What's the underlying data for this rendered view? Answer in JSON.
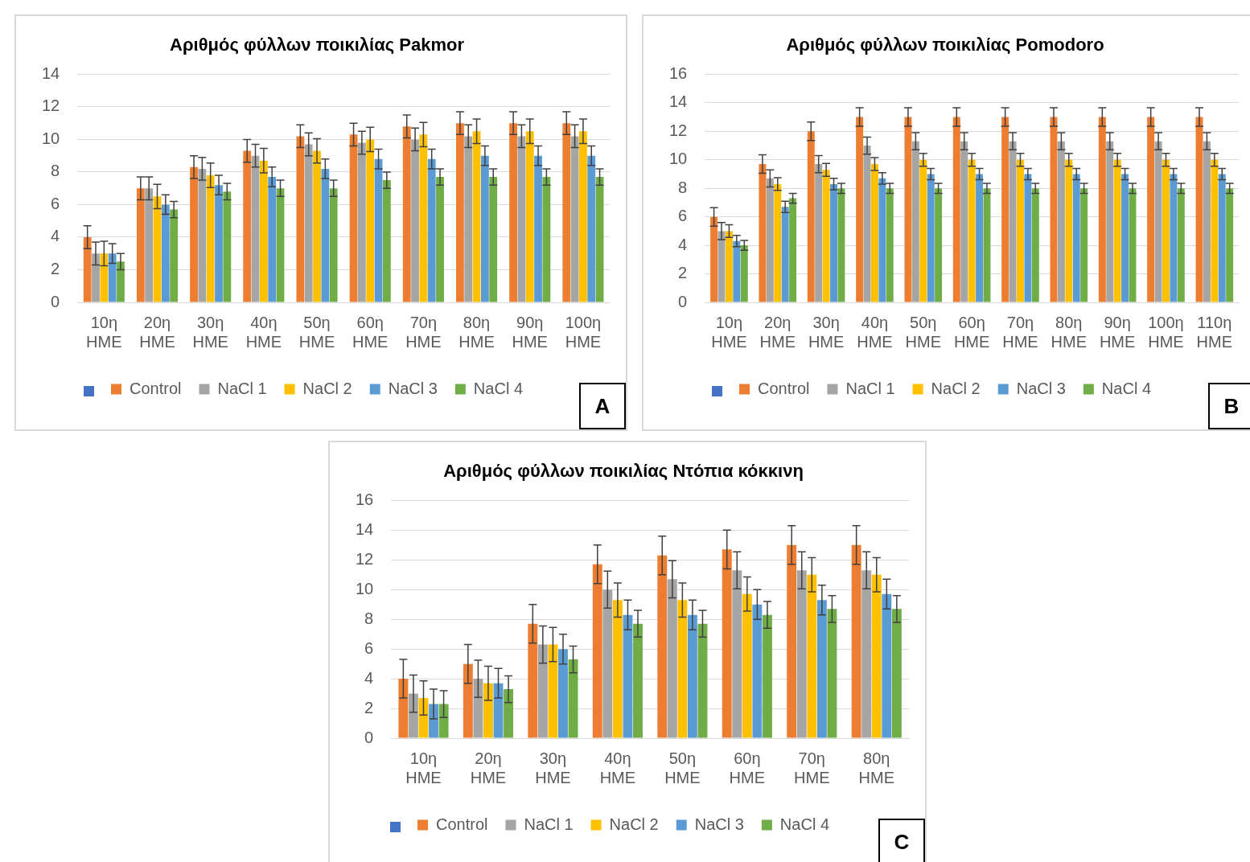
{
  "chart_data": [
    {
      "type": "bar",
      "title": "Αριθμός φύλλων ποικιλίας Pakmor",
      "categories": [
        "10η HME",
        "20η HME",
        "30η HME",
        "40η HME",
        "50η HME",
        "60η HME",
        "70η HME",
        "80η HME",
        "90η HME",
        "100η HME"
      ],
      "ylim": [
        0,
        14
      ],
      "yticks": [
        0,
        2,
        4,
        6,
        8,
        10,
        12,
        14
      ],
      "grid": "y",
      "legend": "bottom",
      "annotations": [
        "A"
      ],
      "series": [
        {
          "name": "Control",
          "color": "#ed7d31",
          "values": [
            4,
            7,
            8.3,
            9.3,
            10.2,
            10.3,
            10.8,
            11,
            11,
            11
          ],
          "errors": [
            0.7,
            0.7,
            0.7,
            0.7,
            0.7,
            0.7,
            0.7,
            0.7,
            0.7,
            0.7
          ]
        },
        {
          "name": "NaCl 1",
          "color": "#a5a5a5",
          "values": [
            3,
            7,
            8.2,
            9,
            9.7,
            9.8,
            10,
            10.2,
            10.2,
            10.2
          ],
          "errors": [
            0.7,
            0.7,
            0.7,
            0.7,
            0.7,
            0.7,
            0.7,
            0.7,
            0.7,
            0.7
          ]
        },
        {
          "name": "NaCl 2",
          "color": "#ffc000",
          "values": [
            3,
            6.5,
            7.8,
            8.7,
            9.3,
            10,
            10.3,
            10.5,
            10.5,
            10.5
          ],
          "errors": [
            0.75,
            0.75,
            0.75,
            0.75,
            0.75,
            0.75,
            0.75,
            0.75,
            0.75,
            0.75
          ]
        },
        {
          "name": "NaCl 3",
          "color": "#5b9bd5",
          "values": [
            3,
            6,
            7.2,
            7.7,
            8.2,
            8.8,
            8.8,
            9,
            9,
            9
          ],
          "errors": [
            0.6,
            0.6,
            0.6,
            0.6,
            0.6,
            0.6,
            0.6,
            0.6,
            0.6,
            0.6
          ]
        },
        {
          "name": "NaCl 4",
          "color": "#70ad47",
          "values": [
            2.5,
            5.7,
            6.8,
            7,
            7,
            7.5,
            7.7,
            7.7,
            7.7,
            7.7
          ],
          "errors": [
            0.5,
            0.5,
            0.5,
            0.5,
            0.5,
            0.5,
            0.5,
            0.5,
            0.5,
            0.5
          ]
        }
      ]
    },
    {
      "type": "bar",
      "title": "Αριθμός φύλλων ποικιλίας Pomodoro",
      "categories": [
        "10η HME",
        "20η HME",
        "30η HME",
        "40η HME",
        "50η HME",
        "60η HME",
        "70η HME",
        "80η HME",
        "90η HME",
        "100η HME",
        "110η HME"
      ],
      "ylim": [
        0,
        16
      ],
      "yticks": [
        0,
        2,
        4,
        6,
        8,
        10,
        12,
        14,
        16
      ],
      "grid": "y",
      "legend": "bottom",
      "annotations": [
        "B"
      ],
      "series": [
        {
          "name": "Control",
          "color": "#ed7d31",
          "values": [
            6,
            9.7,
            12,
            13,
            13,
            13,
            13,
            13,
            13,
            13,
            13
          ],
          "errors": [
            0.65,
            0.65,
            0.65,
            0.65,
            0.65,
            0.65,
            0.65,
            0.65,
            0.65,
            0.65,
            0.65
          ]
        },
        {
          "name": "NaCl 1",
          "color": "#a5a5a5",
          "values": [
            5,
            8.7,
            9.7,
            11,
            11.3,
            11.3,
            11.3,
            11.3,
            11.3,
            11.3,
            11.3
          ],
          "errors": [
            0.6,
            0.6,
            0.6,
            0.6,
            0.6,
            0.6,
            0.6,
            0.6,
            0.6,
            0.6,
            0.6
          ]
        },
        {
          "name": "NaCl 2",
          "color": "#ffc000",
          "values": [
            5,
            8.3,
            9.3,
            9.7,
            10,
            10,
            10,
            10,
            10,
            10,
            10
          ],
          "errors": [
            0.45,
            0.45,
            0.45,
            0.45,
            0.45,
            0.45,
            0.45,
            0.45,
            0.45,
            0.45,
            0.45
          ]
        },
        {
          "name": "NaCl 3",
          "color": "#5b9bd5",
          "values": [
            4.3,
            6.7,
            8.3,
            8.7,
            9,
            9,
            9,
            9,
            9,
            9,
            9
          ],
          "errors": [
            0.4,
            0.4,
            0.4,
            0.4,
            0.4,
            0.4,
            0.4,
            0.4,
            0.4,
            0.4,
            0.4
          ]
        },
        {
          "name": "NaCl 4",
          "color": "#70ad47",
          "values": [
            4,
            7.3,
            8,
            8,
            8,
            8,
            8,
            8,
            8,
            8,
            8
          ],
          "errors": [
            0.35,
            0.35,
            0.35,
            0.35,
            0.35,
            0.35,
            0.35,
            0.35,
            0.35,
            0.35,
            0.35
          ]
        }
      ]
    },
    {
      "type": "bar",
      "title": "Αριθμός φύλλων ποικιλίας Ντόπια κόκκινη",
      "categories": [
        "10η HME",
        "20η HME",
        "30η HME",
        "40η HME",
        "50η HME",
        "60η HME",
        "70η HME",
        "80η HME"
      ],
      "ylim": [
        0,
        16
      ],
      "yticks": [
        0,
        2,
        4,
        6,
        8,
        10,
        12,
        14,
        16
      ],
      "grid": "y",
      "legend": "bottom",
      "annotations": [
        "C"
      ],
      "series": [
        {
          "name": "Control",
          "color": "#ed7d31",
          "values": [
            4,
            5,
            7.7,
            11.7,
            12.3,
            12.7,
            13,
            13
          ],
          "errors": [
            1.3,
            1.3,
            1.3,
            1.3,
            1.3,
            1.3,
            1.3,
            1.3
          ]
        },
        {
          "name": "NaCl 1",
          "color": "#a5a5a5",
          "values": [
            3,
            4,
            6.3,
            10,
            10.7,
            11.3,
            11.3,
            11.3
          ],
          "errors": [
            1.25,
            1.25,
            1.25,
            1.25,
            1.25,
            1.25,
            1.25,
            1.25
          ]
        },
        {
          "name": "NaCl 2",
          "color": "#ffc000",
          "values": [
            2.7,
            3.7,
            6.3,
            9.3,
            9.3,
            9.7,
            11,
            11
          ],
          "errors": [
            1.15,
            1.15,
            1.15,
            1.15,
            1.15,
            1.15,
            1.15,
            1.15
          ]
        },
        {
          "name": "NaCl 3",
          "color": "#5b9bd5",
          "values": [
            2.3,
            3.7,
            6,
            8.3,
            8.3,
            9,
            9.3,
            9.7
          ],
          "errors": [
            1,
            1,
            1,
            1,
            1,
            1,
            1,
            1
          ]
        },
        {
          "name": "NaCl 4",
          "color": "#70ad47",
          "values": [
            2.3,
            3.3,
            5.3,
            7.7,
            7.7,
            8.3,
            8.7,
            8.7
          ],
          "errors": [
            0.9,
            0.9,
            0.9,
            0.9,
            0.9,
            0.9,
            0.9,
            0.9
          ]
        }
      ]
    }
  ]
}
